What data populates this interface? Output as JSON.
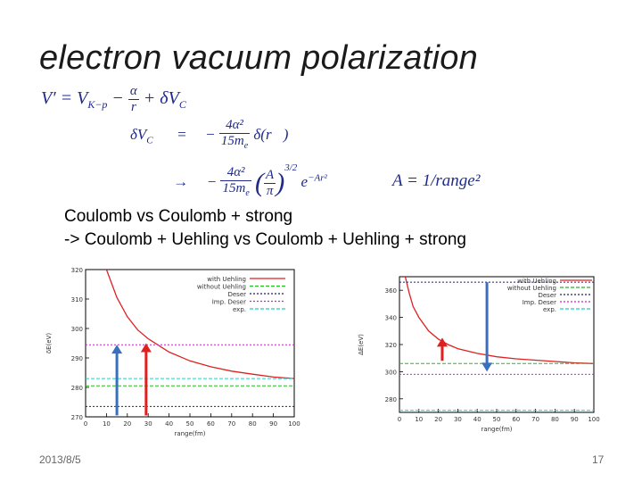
{
  "slide": {
    "title": "electron vacuum polarization",
    "eq1": {
      "lhs": "V′ = V",
      "sub": "K−p",
      "minus": "−",
      "alpha": "α",
      "r": "r",
      "rest": "+ δV",
      "sub2": "C"
    },
    "eq2": {
      "lhs": "δV",
      "sub": "C",
      "eq": "=",
      "minus": "−",
      "num": "4α²",
      "den": "15m",
      "densub": "e",
      "rest": "δ(r⃗)"
    },
    "eq3": {
      "arrow": "→",
      "minus": "−",
      "num": "4α²",
      "den": "15m",
      "densub": "e",
      "paren_num": "A",
      "paren_den": "π",
      "exp": "3/2",
      "e": "e",
      "eexp": "−Ar²"
    },
    "eq4": "A = 1/range²",
    "note_line1": "Coulomb vs Coulomb + strong",
    "note_line2": "-> Coulomb + Uehling vs Coulomb + Uehling + strong",
    "date": "2013/8/5",
    "page_number": "17"
  },
  "legend": [
    "with Uehling",
    "without Uehling",
    "Deser",
    "Imp. Deser",
    "exp."
  ],
  "chart_data": [
    {
      "type": "line",
      "xlabel": "range(fm)",
      "ylabel": "δE(eV)",
      "xlim": [
        0,
        100
      ],
      "ylim": [
        270,
        320
      ],
      "xticks": [
        0,
        10,
        20,
        30,
        40,
        50,
        60,
        70,
        80,
        90,
        100
      ],
      "yticks": [
        270,
        280,
        290,
        300,
        310,
        320
      ],
      "series": [
        {
          "name": "with Uehling",
          "color": "#dd2222",
          "style": "solid",
          "x": [
            10,
            15,
            20,
            25,
            30,
            40,
            50,
            60,
            70,
            80,
            90,
            100
          ],
          "y": [
            320,
            310.5,
            304,
            299.5,
            296.5,
            292,
            289,
            287,
            285.5,
            284.5,
            283.5,
            283
          ]
        },
        {
          "name": "without Uehling",
          "color": "#22bb22",
          "style": "dashed",
          "x": [
            0,
            100
          ],
          "y": [
            280.5,
            280.5
          ]
        },
        {
          "name": "Deser",
          "color": "#222266",
          "style": "dotted",
          "x": [
            0,
            100
          ],
          "y": [
            273.5,
            273.5
          ]
        },
        {
          "name": "Imp. Deser",
          "color": "#cc22cc",
          "style": "dotted",
          "x": [
            0,
            100
          ],
          "y": [
            294.5,
            294.5
          ]
        },
        {
          "name": "exp.",
          "color": "#22cccc",
          "style": "dashed",
          "x": [
            0,
            100
          ],
          "y": [
            283,
            283
          ]
        }
      ],
      "arrows": [
        {
          "color": "#3a6fbf",
          "x": 15,
          "y_from": 270.5,
          "y_to": 294.5
        },
        {
          "color": "#e02020",
          "x": 29,
          "y_from": 270.5,
          "y_to": 295
        }
      ]
    },
    {
      "type": "line",
      "xlabel": "range(fm)",
      "ylabel": "ΔE(eV)",
      "xlim": [
        0,
        100
      ],
      "ylim": [
        270,
        370
      ],
      "xticks": [
        0,
        10,
        20,
        30,
        40,
        50,
        60,
        70,
        80,
        90,
        100
      ],
      "yticks": [
        280,
        300,
        320,
        340,
        360
      ],
      "series": [
        {
          "name": "with Uehling",
          "color": "#dd2222",
          "style": "solid",
          "x": [
            3,
            5,
            7,
            10,
            15,
            20,
            25,
            30,
            40,
            50,
            60,
            70,
            80,
            90,
            100
          ],
          "y": [
            370,
            358,
            348,
            340,
            330,
            324,
            320,
            317,
            313.5,
            311,
            309.5,
            308.5,
            307.5,
            306.5,
            306
          ]
        },
        {
          "name": "without Uehling",
          "color": "#22bb22",
          "style": "dashed",
          "x": [
            0,
            100
          ],
          "y": [
            306,
            306
          ]
        },
        {
          "name": "Deser",
          "color": "#222266",
          "style": "dotted",
          "x": [
            0,
            100
          ],
          "y": [
            366,
            366
          ]
        },
        {
          "name": "Imp. Deser",
          "color": "#cc22cc",
          "style": "dotted",
          "x": [
            0,
            100
          ],
          "y": [
            298,
            298
          ]
        },
        {
          "name": "exp.",
          "color": "#22cccc",
          "style": "dashed",
          "x": [
            0,
            100
          ],
          "y": [
            271.5,
            271.5
          ]
        }
      ],
      "arrows": [
        {
          "color": "#e02020",
          "x": 22,
          "y_from": 308,
          "y_to": 325
        },
        {
          "color": "#3a6fbf",
          "x": 45,
          "y_from": 366,
          "y_to": 300
        }
      ]
    }
  ]
}
